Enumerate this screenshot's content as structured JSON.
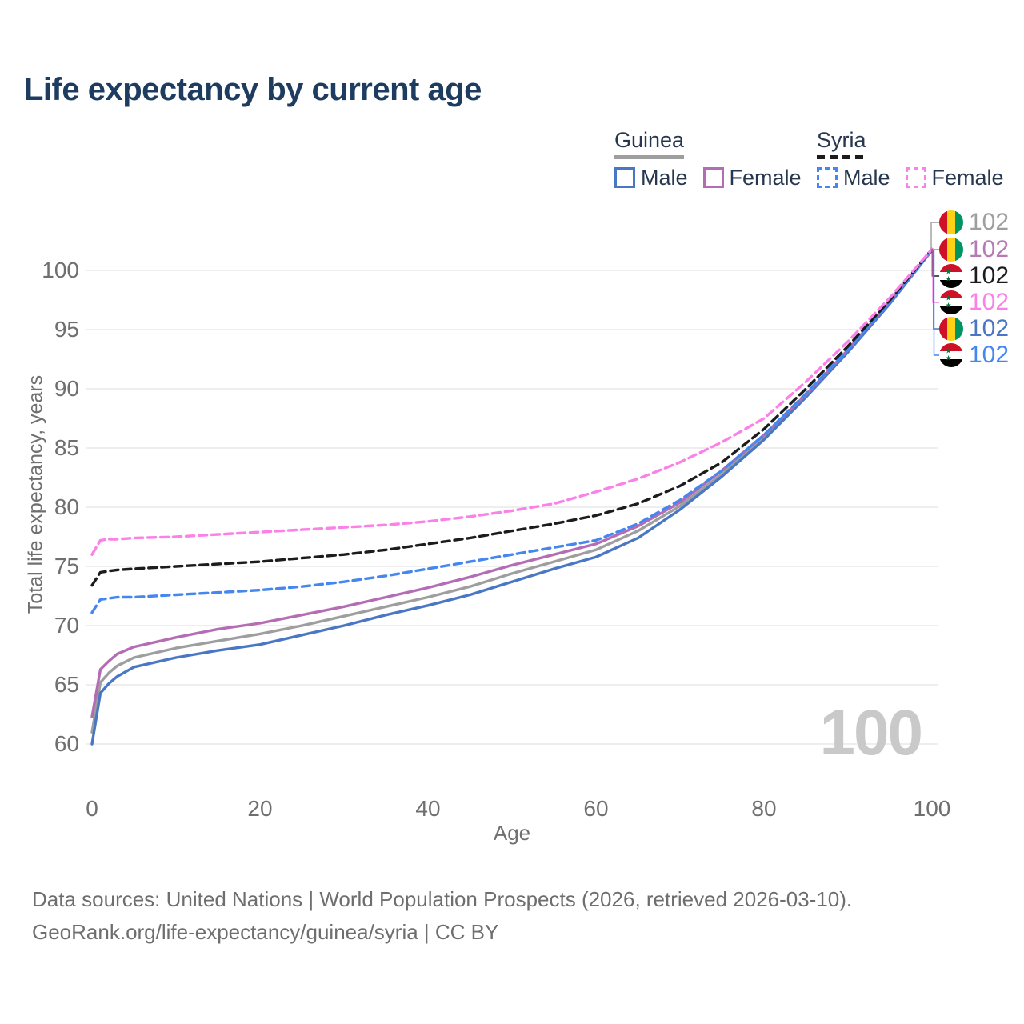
{
  "title": "Life expectancy by current age",
  "legend": {
    "groups": [
      {
        "label": "Guinea",
        "line_style": "solid",
        "underline_color": "#9e9e9e",
        "items": [
          {
            "label": "Male",
            "color": "#4a77c4",
            "dashed": false
          },
          {
            "label": "Female",
            "color": "#b46cb4",
            "dashed": false
          }
        ]
      },
      {
        "label": "Syria",
        "line_style": "dashed",
        "underline_color": "#1c1c1c",
        "items": [
          {
            "label": "Male",
            "color": "#4487f0",
            "dashed": true
          },
          {
            "label": "Female",
            "color": "#fb80e8",
            "dashed": true
          }
        ]
      }
    ]
  },
  "chart_data": {
    "type": "line",
    "title": "Life expectancy by current age",
    "xlabel": "Age",
    "ylabel": "Total life expectancy, years",
    "xlim": [
      0,
      100
    ],
    "ylim": [
      58.5,
      103.5
    ],
    "xticks": [
      0,
      20,
      40,
      60,
      80,
      100
    ],
    "yticks": [
      60,
      65,
      70,
      75,
      80,
      85,
      90,
      95,
      100
    ],
    "grid": "horizontal gridlines only",
    "legend_position": "top-right",
    "x": [
      0,
      1,
      2,
      3,
      5,
      10,
      15,
      20,
      25,
      30,
      35,
      40,
      45,
      50,
      55,
      60,
      65,
      70,
      75,
      80,
      85,
      90,
      95,
      100
    ],
    "series": [
      {
        "name": "Guinea Total",
        "country": "Guinea",
        "color": "#9e9e9e",
        "dashed": false,
        "end_value_label": "102",
        "values": [
          61.0,
          65.2,
          66.0,
          66.6,
          67.3,
          68.1,
          68.7,
          69.3,
          70.0,
          70.8,
          71.6,
          72.4,
          73.3,
          74.4,
          75.4,
          76.4,
          78.0,
          80.1,
          82.8,
          85.9,
          89.4,
          93.2,
          97.3,
          101.7
        ]
      },
      {
        "name": "Guinea Male",
        "country": "Guinea",
        "color": "#4a77c4",
        "dashed": false,
        "end_value_label": "102",
        "values": [
          60.0,
          64.3,
          65.1,
          65.7,
          66.5,
          67.3,
          67.9,
          68.4,
          69.2,
          70.0,
          70.9,
          71.7,
          72.6,
          73.7,
          74.8,
          75.8,
          77.4,
          79.8,
          82.6,
          85.7,
          89.3,
          93.1,
          97.2,
          101.7
        ]
      },
      {
        "name": "Guinea Female",
        "country": "Guinea",
        "color": "#b46cb4",
        "dashed": false,
        "end_value_label": "102",
        "values": [
          62.3,
          66.3,
          67.0,
          67.6,
          68.2,
          69.0,
          69.7,
          70.2,
          70.9,
          71.6,
          72.4,
          73.2,
          74.1,
          75.1,
          76.0,
          76.9,
          78.4,
          80.4,
          83.1,
          86.1,
          89.5,
          93.3,
          97.4,
          101.7
        ]
      },
      {
        "name": "Syria Male",
        "country": "Syria",
        "color": "#4487f0",
        "dashed": true,
        "end_value_label": "102",
        "values": [
          71.1,
          72.2,
          72.3,
          72.4,
          72.4,
          72.6,
          72.8,
          73.0,
          73.3,
          73.7,
          74.2,
          74.8,
          75.4,
          76.0,
          76.6,
          77.2,
          78.6,
          80.6,
          83.1,
          86.1,
          89.6,
          93.3,
          97.3,
          101.7
        ]
      },
      {
        "name": "Syria Total",
        "country": "Syria",
        "color": "#1c1c1c",
        "dashed": true,
        "end_value_label": "102",
        "values": [
          73.4,
          74.5,
          74.6,
          74.7,
          74.8,
          75.0,
          75.2,
          75.4,
          75.7,
          76.0,
          76.4,
          76.9,
          77.4,
          78.0,
          78.6,
          79.3,
          80.3,
          81.8,
          83.8,
          86.6,
          90.0,
          93.6,
          97.5,
          101.8
        ]
      },
      {
        "name": "Syria Female",
        "country": "Syria",
        "color": "#fb80e8",
        "dashed": true,
        "end_value_label": "102",
        "values": [
          76.0,
          77.2,
          77.3,
          77.3,
          77.4,
          77.5,
          77.7,
          77.9,
          78.1,
          78.3,
          78.5,
          78.8,
          79.2,
          79.7,
          80.3,
          81.3,
          82.4,
          83.8,
          85.5,
          87.5,
          90.6,
          94.0,
          97.7,
          101.8
        ]
      }
    ]
  },
  "end_labels": [
    {
      "text": "102",
      "flag": "guinea",
      "color": "#9e9e9e",
      "series": "Guinea Total"
    },
    {
      "text": "102",
      "flag": "guinea",
      "color": "#b579b5",
      "series": "Guinea Female"
    },
    {
      "text": "102",
      "flag": "syria",
      "color": "#1c1c1c",
      "series": "Syria Total"
    },
    {
      "text": "102",
      "flag": "syria",
      "color": "#fb80e8",
      "series": "Syria Female"
    },
    {
      "text": "102",
      "flag": "guinea",
      "color": "#4a77c4",
      "series": "Guinea Male"
    },
    {
      "text": "102",
      "flag": "syria",
      "color": "#4487f0",
      "series": "Syria Male"
    }
  ],
  "watermark": "100",
  "flags": {
    "guinea": {
      "colors": [
        "#ce1126",
        "#fcd116",
        "#009460"
      ],
      "orientation": "vertical"
    },
    "syria": {
      "colors": [
        "#ce1126",
        "#ffffff",
        "#000000"
      ],
      "stars": "★ ★",
      "star_color": "#007a3d",
      "orientation": "horizontal"
    }
  },
  "footer": {
    "line1": "Data sources: United Nations | World Population Prospects (2026, retrieved 2026-03-10).",
    "line2": "GeoRank.org/life-expectancy/guinea/syria | CC BY"
  }
}
